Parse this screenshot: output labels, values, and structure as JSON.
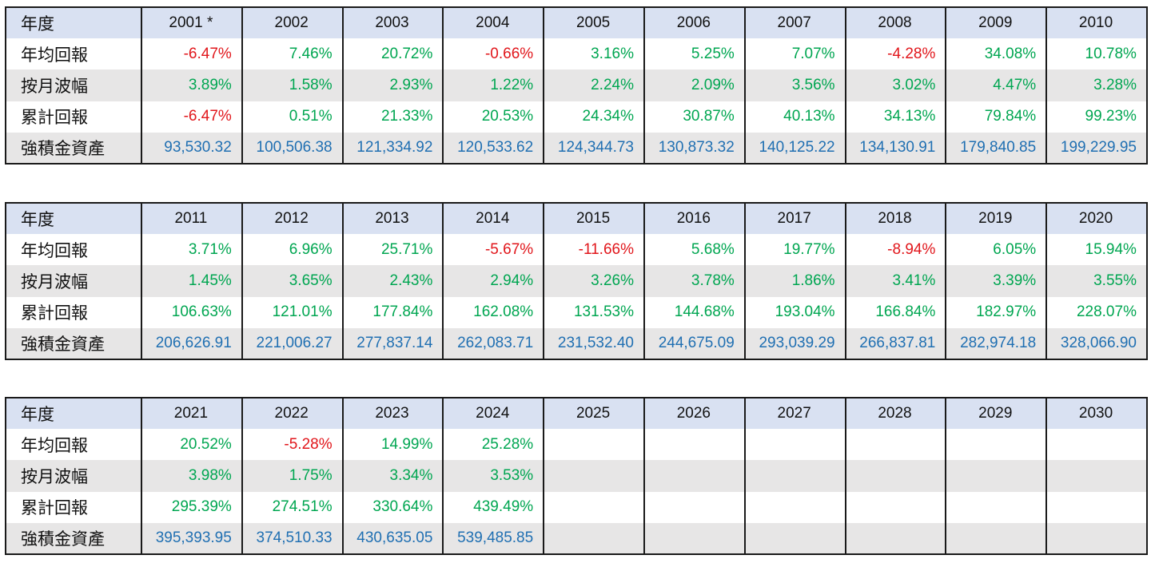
{
  "tables": [
    {
      "header_label": "年度",
      "years": [
        "2001 *",
        "2002",
        "2003",
        "2004",
        "2005",
        "2006",
        "2007",
        "2008",
        "2009",
        "2010"
      ],
      "rows": [
        {
          "label": "年均回報",
          "values": [
            "-6.47%",
            "7.46%",
            "20.72%",
            "-0.66%",
            "3.16%",
            "5.25%",
            "7.07%",
            "-4.28%",
            "34.08%",
            "10.78%"
          ],
          "signs": [
            "neg",
            "pos",
            "pos",
            "neg",
            "pos",
            "pos",
            "pos",
            "neg",
            "pos",
            "pos"
          ]
        },
        {
          "label": "按月波幅",
          "values": [
            "3.89%",
            "1.58%",
            "2.93%",
            "1.22%",
            "2.24%",
            "2.09%",
            "3.56%",
            "3.02%",
            "4.47%",
            "3.28%"
          ],
          "signs": [
            "pos",
            "pos",
            "pos",
            "pos",
            "pos",
            "pos",
            "pos",
            "pos",
            "pos",
            "pos"
          ]
        },
        {
          "label": "累計回報",
          "values": [
            "-6.47%",
            "0.51%",
            "21.33%",
            "20.53%",
            "24.34%",
            "30.87%",
            "40.13%",
            "34.13%",
            "79.84%",
            "99.23%"
          ],
          "signs": [
            "neg",
            "pos",
            "pos",
            "pos",
            "pos",
            "pos",
            "pos",
            "pos",
            "pos",
            "pos"
          ]
        },
        {
          "label": "強積金資產",
          "values": [
            "93,530.32",
            "100,506.38",
            "121,334.92",
            "120,533.62",
            "124,344.73",
            "130,873.32",
            "140,125.22",
            "134,130.91",
            "179,840.85",
            "199,229.95"
          ],
          "signs": [
            "blue",
            "blue",
            "blue",
            "blue",
            "blue",
            "blue",
            "blue",
            "blue",
            "blue",
            "blue"
          ]
        }
      ]
    },
    {
      "header_label": "年度",
      "years": [
        "2011",
        "2012",
        "2013",
        "2014",
        "2015",
        "2016",
        "2017",
        "2018",
        "2019",
        "2020"
      ],
      "rows": [
        {
          "label": "年均回報",
          "values": [
            "3.71%",
            "6.96%",
            "25.71%",
            "-5.67%",
            "-11.66%",
            "5.68%",
            "19.77%",
            "-8.94%",
            "6.05%",
            "15.94%"
          ],
          "signs": [
            "pos",
            "pos",
            "pos",
            "neg",
            "neg",
            "pos",
            "pos",
            "neg",
            "pos",
            "pos"
          ]
        },
        {
          "label": "按月波幅",
          "values": [
            "1.45%",
            "3.65%",
            "2.43%",
            "2.94%",
            "3.26%",
            "3.78%",
            "1.86%",
            "3.41%",
            "3.39%",
            "3.55%"
          ],
          "signs": [
            "pos",
            "pos",
            "pos",
            "pos",
            "pos",
            "pos",
            "pos",
            "pos",
            "pos",
            "pos"
          ]
        },
        {
          "label": "累計回報",
          "values": [
            "106.63%",
            "121.01%",
            "177.84%",
            "162.08%",
            "131.53%",
            "144.68%",
            "193.04%",
            "166.84%",
            "182.97%",
            "228.07%"
          ],
          "signs": [
            "pos",
            "pos",
            "pos",
            "pos",
            "pos",
            "pos",
            "pos",
            "pos",
            "pos",
            "pos"
          ]
        },
        {
          "label": "強積金資產",
          "values": [
            "206,626.91",
            "221,006.27",
            "277,837.14",
            "262,083.71",
            "231,532.40",
            "244,675.09",
            "293,039.29",
            "266,837.81",
            "282,974.18",
            "328,066.90"
          ],
          "signs": [
            "blue",
            "blue",
            "blue",
            "blue",
            "blue",
            "blue",
            "blue",
            "blue",
            "blue",
            "blue"
          ]
        }
      ]
    },
    {
      "header_label": "年度",
      "years": [
        "2021",
        "2022",
        "2023",
        "2024",
        "2025",
        "2026",
        "2027",
        "2028",
        "2029",
        "2030"
      ],
      "rows": [
        {
          "label": "年均回報",
          "values": [
            "20.52%",
            "-5.28%",
            "14.99%",
            "25.28%",
            "",
            "",
            "",
            "",
            "",
            ""
          ],
          "signs": [
            "pos",
            "neg",
            "pos",
            "pos",
            "pos",
            "pos",
            "pos",
            "pos",
            "pos",
            "pos"
          ]
        },
        {
          "label": "按月波幅",
          "values": [
            "3.98%",
            "1.75%",
            "3.34%",
            "3.53%",
            "",
            "",
            "",
            "",
            "",
            ""
          ],
          "signs": [
            "pos",
            "pos",
            "pos",
            "pos",
            "pos",
            "pos",
            "pos",
            "pos",
            "pos",
            "pos"
          ]
        },
        {
          "label": "累計回報",
          "values": [
            "295.39%",
            "274.51%",
            "330.64%",
            "439.49%",
            "",
            "",
            "",
            "",
            "",
            ""
          ],
          "signs": [
            "pos",
            "pos",
            "pos",
            "pos",
            "pos",
            "pos",
            "pos",
            "pos",
            "pos",
            "pos"
          ]
        },
        {
          "label": "強積金資產",
          "values": [
            "395,393.95",
            "374,510.33",
            "430,635.05",
            "539,485.85",
            "",
            "",
            "",
            "",
            "",
            ""
          ],
          "signs": [
            "blue",
            "blue",
            "blue",
            "blue",
            "blue",
            "blue",
            "blue",
            "blue",
            "blue",
            "blue"
          ]
        }
      ]
    }
  ],
  "colors": {
    "positive": "#00a651",
    "negative": "#e1161b",
    "asset": "#1f6fb2",
    "header_bg": "#d9e1f2",
    "shade_bg": "#e7e6e6"
  }
}
